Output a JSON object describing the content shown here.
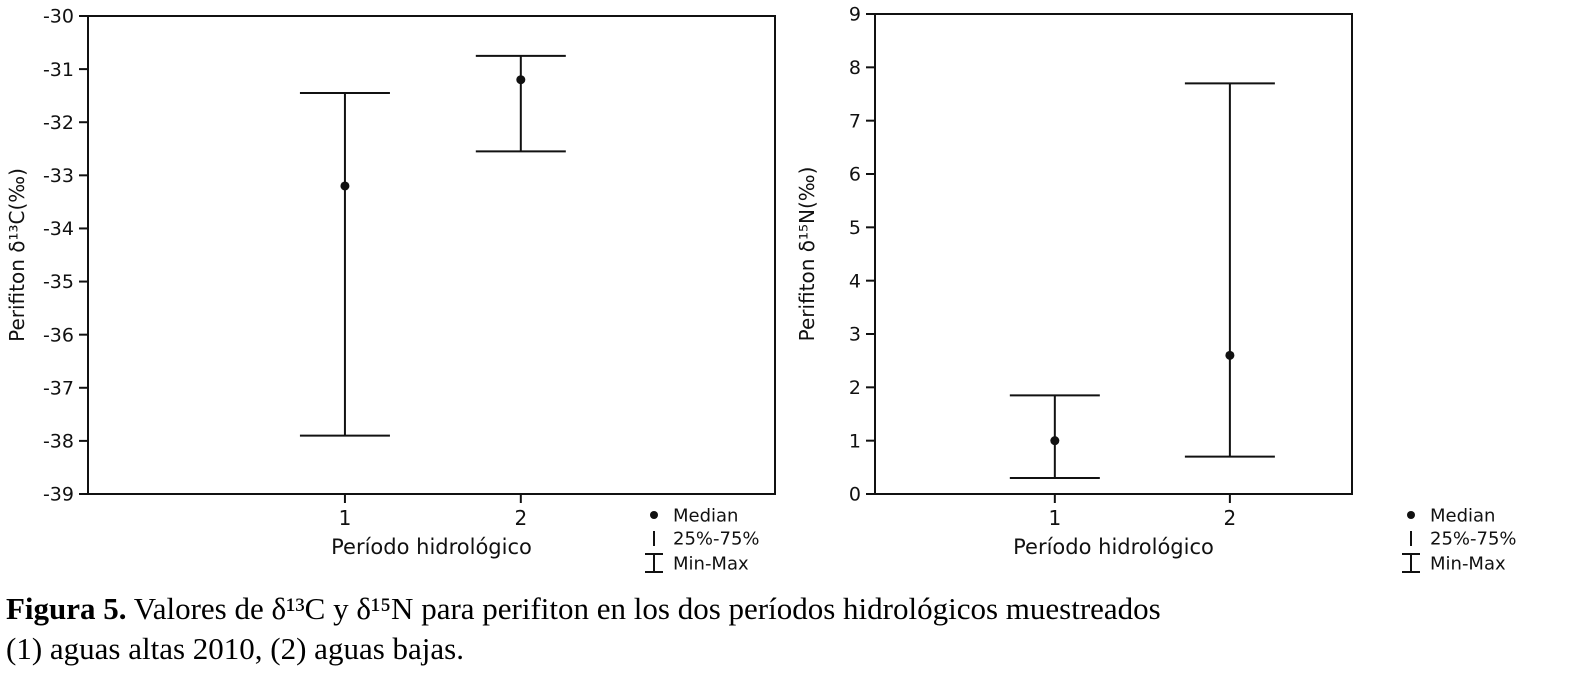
{
  "figure": {
    "caption_label": "Figura 5.",
    "caption_line1": " Valores de δ¹³C y δ¹⁵N para perifiton en los dos períodos hidrológicos muestreados",
    "caption_line2": "(1) aguas altas 2010, (2) aguas bajas."
  },
  "colors": {
    "ink": "#111111",
    "background": "#ffffff"
  },
  "chart_data": [
    {
      "type": "box-whisker",
      "title": "",
      "xlabel": "Período hidrológico",
      "ylabel": "Perifiton δ¹³C(‰)",
      "categories": [
        "1",
        "2"
      ],
      "ylim": [
        -39,
        -30
      ],
      "ytick_step": 1,
      "grid": false,
      "series": [
        {
          "category": "1",
          "median": -33.2,
          "min": -37.9,
          "max": -31.45
        },
        {
          "category": "2",
          "median": -31.2,
          "min": -32.55,
          "max": -30.75
        }
      ],
      "legend": [
        "Median",
        "25%-75%",
        "Min-Max"
      ],
      "legend_position": "bottom-right"
    },
    {
      "type": "box-whisker",
      "title": "",
      "xlabel": "Período hidrológico",
      "ylabel": "Perifiton δ¹⁵N(‰)",
      "categories": [
        "1",
        "2"
      ],
      "ylim": [
        0,
        9
      ],
      "ytick_step": 1,
      "grid": false,
      "series": [
        {
          "category": "1",
          "median": 1.0,
          "min": 0.3,
          "max": 1.85
        },
        {
          "category": "2",
          "median": 2.6,
          "min": 0.7,
          "max": 7.7
        }
      ],
      "legend": [
        "Median",
        "25%-75%",
        "Min-Max"
      ],
      "legend_position": "bottom-right"
    }
  ]
}
